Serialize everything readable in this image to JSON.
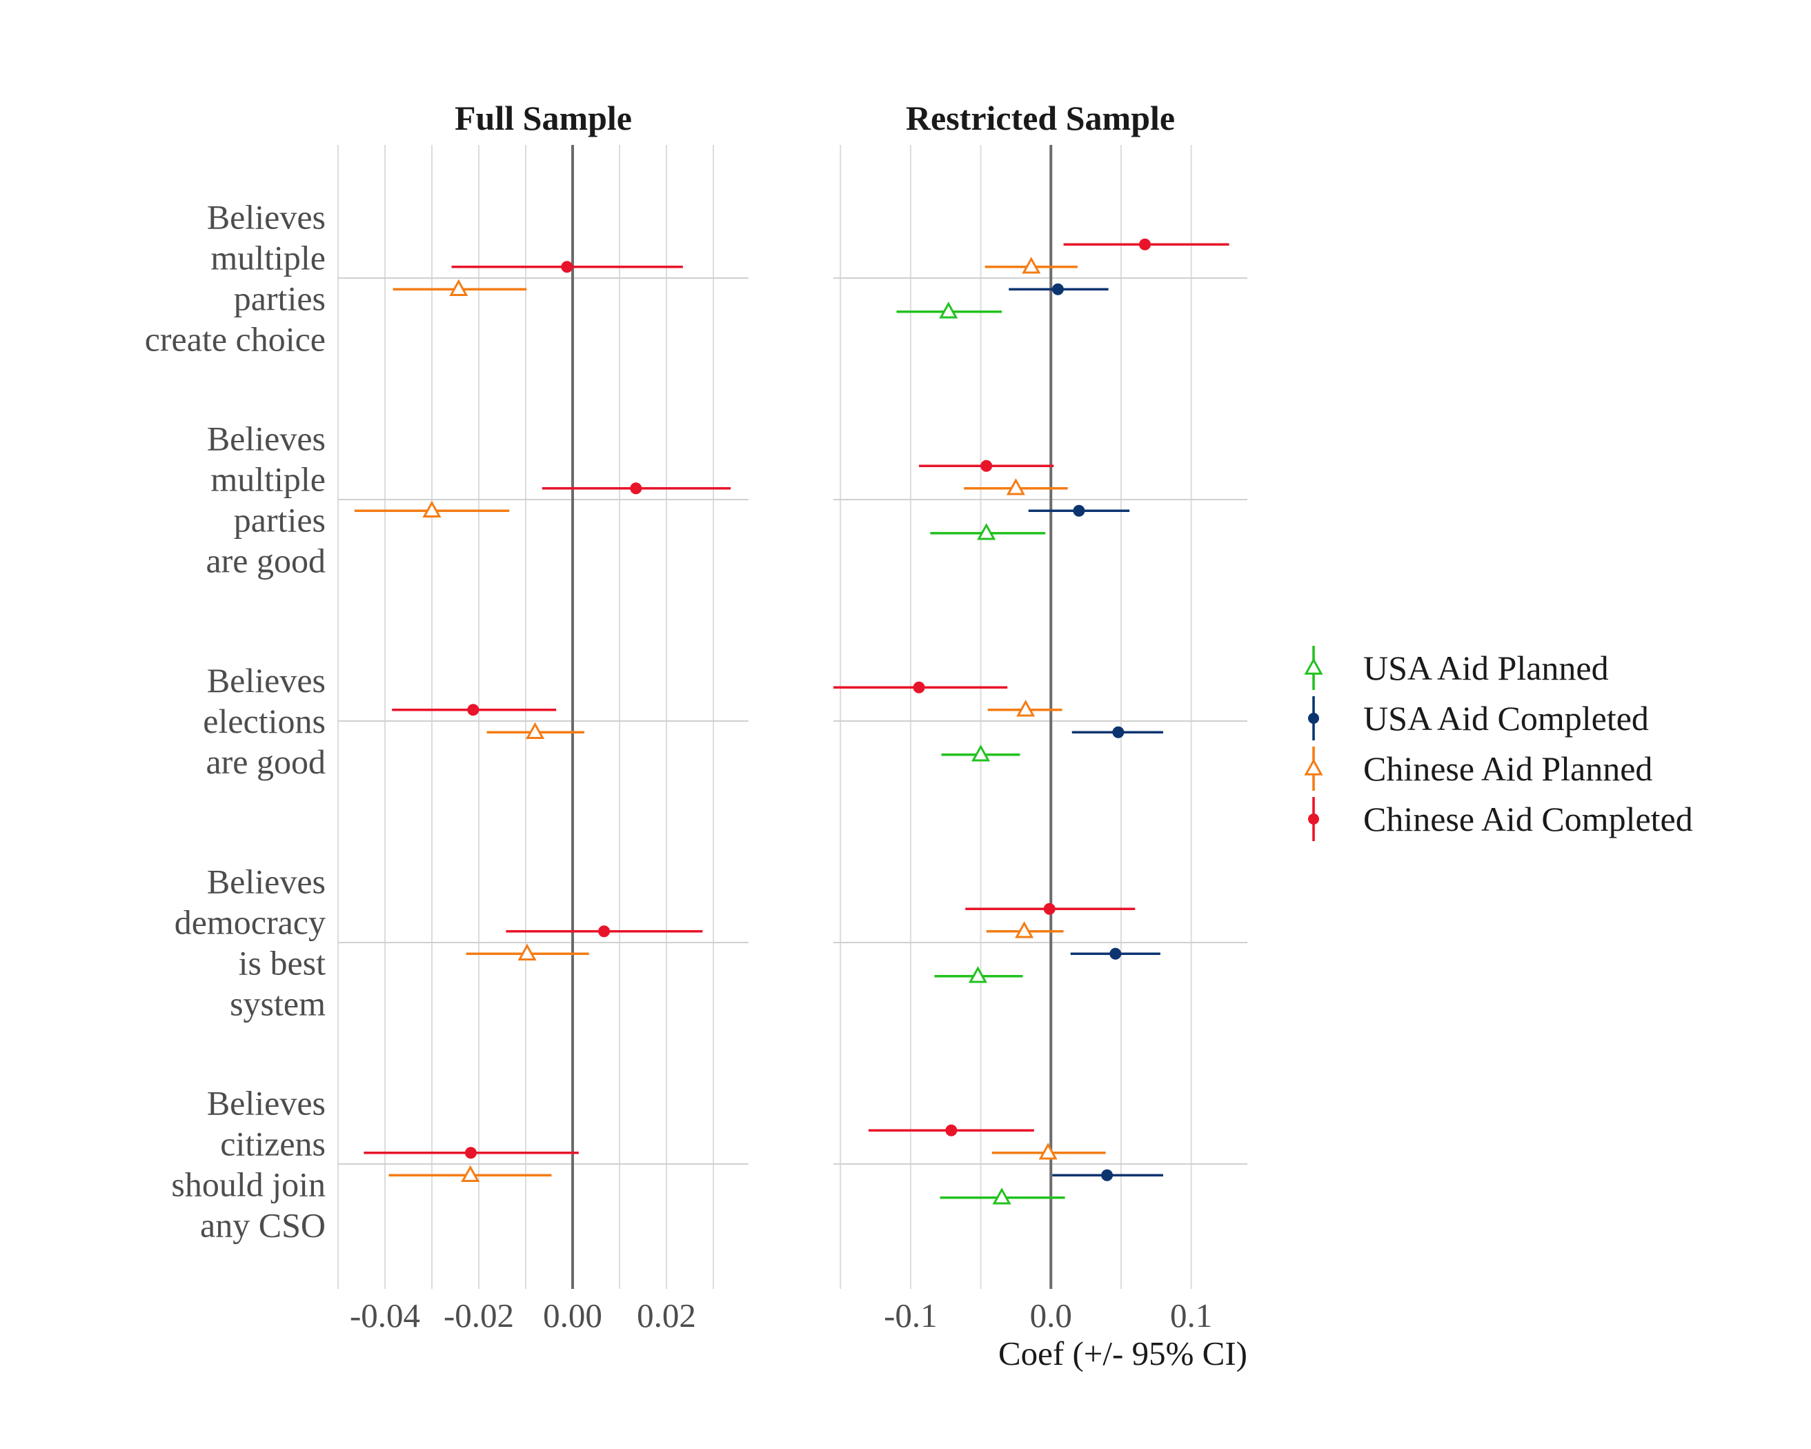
{
  "chart_data": {
    "type": "coefficient-plot",
    "xlabel": "Coef (+/- 95% CI)",
    "categories": [
      "Believes\nmultiple\nparties\ncreate choice",
      "Believes\nmultiple\nparties\nare good",
      "Believes\nelections\nare good",
      "Believes\ndemocracy\nis best\nsystem",
      "Believes\ncitizens\nshould join\nany CSO"
    ],
    "series_styles": [
      {
        "name": "USA Aid Planned",
        "color": "#22c21f",
        "marker": "triangle-open"
      },
      {
        "name": "USA Aid Completed",
        "color": "#0c3570",
        "marker": "circle-filled"
      },
      {
        "name": "Chinese Aid Planned",
        "color": "#f47c14",
        "marker": "triangle-open"
      },
      {
        "name": "Chinese Aid Completed",
        "color": "#e8142a",
        "marker": "circle-filled"
      }
    ],
    "panels": [
      {
        "title": "Full Sample",
        "xlim": [
          -0.05,
          0.0375
        ],
        "ticks": [
          -0.04,
          -0.02,
          0.0,
          0.02
        ],
        "tick_labels": [
          "-0.04",
          "-0.02",
          "0.00",
          "0.02"
        ],
        "series": [
          {
            "name": "Chinese Aid Planned",
            "estimates": [
              -0.0243,
              -0.03,
              -0.008,
              -0.0097,
              -0.0218
            ],
            "lower": [
              -0.0383,
              -0.0465,
              -0.0183,
              -0.0227,
              -0.0392
            ],
            "upper": [
              -0.0098,
              -0.0135,
              0.0025,
              0.0035,
              -0.0045
            ]
          },
          {
            "name": "Chinese Aid Completed",
            "estimates": [
              -0.0012,
              0.0135,
              -0.0212,
              0.0067,
              -0.0217
            ],
            "lower": [
              -0.0258,
              -0.0065,
              -0.0385,
              -0.0142,
              -0.0445
            ],
            "upper": [
              0.0235,
              0.0337,
              -0.0035,
              0.0277,
              0.0013
            ]
          }
        ]
      },
      {
        "title": "Restricted Sample",
        "xlim": [
          -0.155,
          0.14
        ],
        "ticks": [
          -0.1,
          0.0,
          0.1
        ],
        "tick_labels": [
          "-0.1",
          "0.0",
          "0.1"
        ],
        "series": [
          {
            "name": "USA Aid Planned",
            "estimates": [
              -0.073,
              -0.046,
              -0.05,
              -0.052,
              -0.035
            ],
            "lower": [
              -0.11,
              -0.086,
              -0.078,
              -0.083,
              -0.079
            ],
            "upper": [
              -0.035,
              -0.004,
              -0.022,
              -0.02,
              0.01
            ]
          },
          {
            "name": "USA Aid Completed",
            "estimates": [
              0.005,
              0.02,
              0.048,
              0.046,
              0.04
            ],
            "lower": [
              -0.03,
              -0.016,
              0.015,
              0.014,
              0.001
            ],
            "upper": [
              0.041,
              0.056,
              0.08,
              0.078,
              0.08
            ]
          },
          {
            "name": "Chinese Aid Planned",
            "estimates": [
              -0.014,
              -0.025,
              -0.018,
              -0.019,
              -0.002
            ],
            "lower": [
              -0.047,
              -0.062,
              -0.045,
              -0.046,
              -0.042
            ],
            "upper": [
              0.019,
              0.012,
              0.008,
              0.009,
              0.039
            ]
          },
          {
            "name": "Chinese Aid Completed",
            "estimates": [
              0.067,
              -0.046,
              -0.094,
              -0.001,
              -0.071
            ],
            "lower": [
              0.009,
              -0.094,
              -0.155,
              -0.061,
              -0.13
            ],
            "upper": [
              0.127,
              0.002,
              -0.031,
              0.06,
              -0.012
            ]
          }
        ]
      }
    ],
    "legend": {
      "position": "right",
      "entries": [
        "USA Aid Planned",
        "USA Aid Completed",
        "Chinese Aid Planned",
        "Chinese Aid Completed"
      ]
    }
  }
}
